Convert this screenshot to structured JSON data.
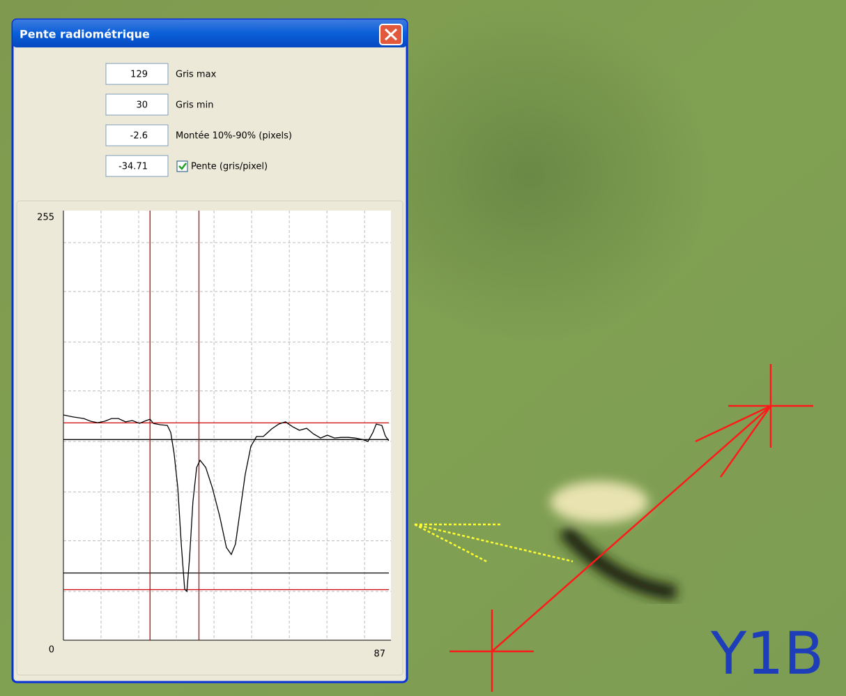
{
  "dialog": {
    "title": "Pente radiométrique",
    "fields": [
      {
        "value": 129,
        "label": "Gris max"
      },
      {
        "value": 30,
        "label": "Gris min"
      },
      {
        "value": -2.6,
        "label": "Montée 10%-90% (pixels)"
      },
      {
        "value": -34.71,
        "label": "Pente (gris/pixel)",
        "checked": true
      }
    ]
  },
  "chart_data": {
    "type": "line",
    "xlim": [
      0,
      87
    ],
    "ylim": [
      0,
      255
    ],
    "xticks": [
      87
    ],
    "yticks": [
      0,
      255
    ],
    "xgrid": [
      10,
      20,
      30,
      40,
      50,
      60,
      70,
      80
    ],
    "ygrid": [
      29,
      59,
      88,
      118,
      148,
      177,
      207,
      236
    ],
    "x": [
      0,
      2.6,
      5.4,
      7.2,
      9.1,
      11.0,
      12.8,
      14.6,
      16.5,
      18.3,
      20.2,
      22.0,
      23.0,
      23.9,
      25.7,
      27.6,
      28.5,
      29.4,
      30.4,
      31.3,
      32.2,
      32.8,
      33.5,
      34.4,
      35.4,
      36.3,
      37.8,
      39.6,
      41.5,
      43.3,
      44.6,
      45.7,
      47.0,
      48.3,
      49.8,
      51.3,
      53.1,
      55.3,
      57.2,
      59.0,
      60.9,
      62.7,
      64.6,
      66.4,
      68.3,
      70.1,
      72.0,
      73.8,
      75.7,
      77.5,
      79.4,
      80.9,
      82.2,
      83.1,
      84.6,
      85.5,
      86.4
    ],
    "series": [
      {
        "color": "#000000",
        "values": [
          133.7,
          132.5,
          131.6,
          130.0,
          129.1,
          130.0,
          131.6,
          131.6,
          129.6,
          130.4,
          128.7,
          130.4,
          131.2,
          128.7,
          127.9,
          127.5,
          123.3,
          110.9,
          90.2,
          57.1,
          30.2,
          29.0,
          48.8,
          82.0,
          102.6,
          106.8,
          102.6,
          90.2,
          73.7,
          55.0,
          50.9,
          57.1,
          77.8,
          98.5,
          115.1,
          120.9,
          120.9,
          125.4,
          128.3,
          129.6,
          126.7,
          124.6,
          125.8,
          122.5,
          120.0,
          121.7,
          120.0,
          120.4,
          120.4,
          120.0,
          119.2,
          118.0,
          123.3,
          128.3,
          127.5,
          121.3,
          118.4
        ]
      }
    ],
    "level_lines": [
      119.1,
      39.9
    ],
    "level_color": "#000000",
    "cursor_lines": [
      23,
      36
    ],
    "cursor_color": "#cc0000"
  },
  "overlay_label": "Y1B"
}
